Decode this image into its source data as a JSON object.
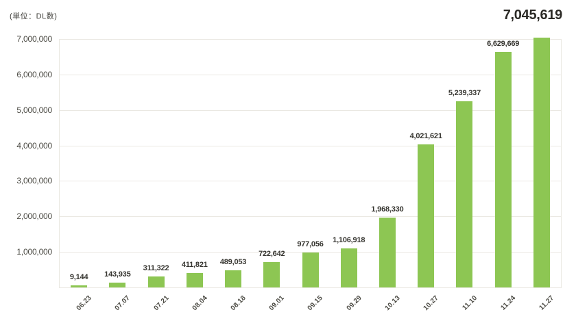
{
  "colors": {
    "bar": "#8dc653",
    "grid": "#eae8e2",
    "axis_label": "#4b4a43",
    "value_label": "#35342f",
    "headline": "#2b2a26",
    "label_dark": "#3e3d38",
    "background": "#ffffff"
  },
  "chart_data": {
    "type": "bar",
    "title": "",
    "unit_label": "(単位：DL数)",
    "xlabel": "",
    "ylabel": "",
    "categories": [
      "06.23",
      "07.07",
      "07.21",
      "08.04",
      "08.18",
      "09.01",
      "09.15",
      "09.29",
      "10.13",
      "10.27",
      "11.10",
      "11.24",
      "11.27"
    ],
    "values": [
      9144,
      143935,
      311322,
      411821,
      489053,
      722642,
      977056,
      1106918,
      1968330,
      4021621,
      5239337,
      6629669,
      7045619
    ],
    "value_labels": [
      "9,144",
      "143,935",
      "311,322",
      "411,821",
      "489,053",
      "722,642",
      "977,056",
      "1,106,918",
      "1,968,330",
      "4,021,621",
      "5,239,337",
      "6,629,669",
      "7,045,619"
    ],
    "highlight_label": "7,045,619",
    "highlight_index": 12,
    "y_ticks": [
      "7,000,000",
      "6,000,000",
      "5,000,000",
      "4,000,000",
      "3,000,000",
      "2,000,000",
      "1,000,000"
    ],
    "ylim": [
      0,
      7000000
    ],
    "grid": true,
    "legend": false
  }
}
